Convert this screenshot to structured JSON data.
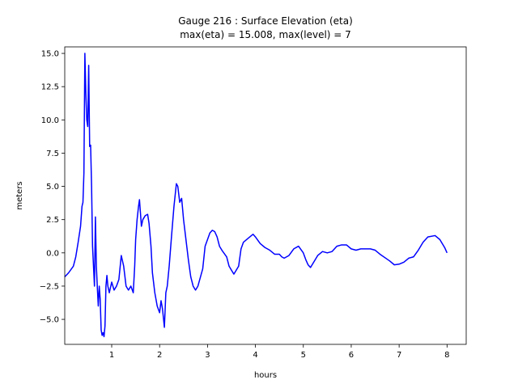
{
  "chart_data": {
    "type": "line",
    "title": "Gauge 216 : Surface Elevation (eta)",
    "subtitle": "max(eta) =  15.008,    max(level) = 7",
    "xlabel": "hours",
    "ylabel": "meters",
    "xlim": [
      0.02,
      8.4
    ],
    "ylim": [
      -6.88,
      15.49
    ],
    "xticks": [
      1,
      2,
      3,
      4,
      5,
      6,
      7,
      8
    ],
    "yticks": [
      {
        "value": -5,
        "label": "−5.0"
      },
      {
        "value": -2.5,
        "label": "−2.5"
      },
      {
        "value": 0,
        "label": "0.0"
      },
      {
        "value": 2.5,
        "label": "2.5"
      },
      {
        "value": 5,
        "label": "5.0"
      },
      {
        "value": 7.5,
        "label": "7.5"
      },
      {
        "value": 10,
        "label": "10.0"
      },
      {
        "value": 12.5,
        "label": "12.5"
      },
      {
        "value": 15,
        "label": "15.0"
      }
    ],
    "grid": false,
    "series": [
      {
        "color": "#0000ff",
        "x": [
          0.02,
          0.1,
          0.2,
          0.25,
          0.3,
          0.35,
          0.38,
          0.4,
          0.42,
          0.44,
          0.46,
          0.48,
          0.5,
          0.52,
          0.54,
          0.56,
          0.58,
          0.6,
          0.62,
          0.64,
          0.66,
          0.68,
          0.7,
          0.72,
          0.74,
          0.76,
          0.78,
          0.8,
          0.82,
          0.84,
          0.86,
          0.88,
          0.9,
          0.92,
          0.95,
          1.0,
          1.05,
          1.1,
          1.15,
          1.2,
          1.25,
          1.3,
          1.35,
          1.4,
          1.45,
          1.48,
          1.5,
          1.53,
          1.56,
          1.58,
          1.6,
          1.62,
          1.65,
          1.7,
          1.75,
          1.78,
          1.82,
          1.85,
          1.9,
          1.95,
          2.0,
          2.03,
          2.06,
          2.1,
          2.13,
          2.16,
          2.2,
          2.25,
          2.3,
          2.35,
          2.38,
          2.42,
          2.46,
          2.5,
          2.55,
          2.6,
          2.65,
          2.7,
          2.75,
          2.8,
          2.9,
          2.95,
          3.0,
          3.05,
          3.1,
          3.15,
          3.2,
          3.25,
          3.3,
          3.4,
          3.45,
          3.5,
          3.55,
          3.6,
          3.65,
          3.7,
          3.75,
          3.85,
          3.95,
          4.0,
          4.1,
          4.2,
          4.3,
          4.4,
          4.5,
          4.55,
          4.6,
          4.7,
          4.8,
          4.9,
          5.0,
          5.05,
          5.1,
          5.15,
          5.2,
          5.3,
          5.4,
          5.5,
          5.6,
          5.7,
          5.8,
          5.9,
          6.0,
          6.1,
          6.2,
          6.4,
          6.5,
          6.6,
          6.8,
          6.9,
          7.0,
          7.1,
          7.2,
          7.3,
          7.4,
          7.5,
          7.6,
          7.75,
          7.85,
          7.95,
          8.0
        ],
        "values": [
          -1.8,
          -1.5,
          -1.0,
          -0.3,
          0.8,
          2.0,
          3.5,
          3.8,
          6,
          15.0,
          12,
          10,
          9.5,
          14.1,
          8,
          8.1,
          5,
          0.5,
          -1,
          -2.5,
          2.7,
          -1,
          -2.6,
          -4,
          -2.5,
          -3.5,
          -5.8,
          -6.2,
          -6.0,
          -6.3,
          -5.5,
          -2.5,
          -1.7,
          -2.5,
          -3.0,
          -2.2,
          -2.8,
          -2.5,
          -2.0,
          -0.2,
          -1.0,
          -2.5,
          -2.8,
          -2.5,
          -3.0,
          -1.0,
          1.0,
          2.5,
          3.5,
          4.0,
          3.0,
          2.0,
          2.5,
          2.8,
          2.9,
          2.2,
          0.5,
          -1.5,
          -3.0,
          -4.0,
          -4.5,
          -3.6,
          -4.2,
          -5.6,
          -3.0,
          -2.5,
          -1.0,
          1.3,
          3.5,
          5.2,
          5.0,
          3.8,
          4.1,
          2.5,
          1.0,
          -0.5,
          -1.8,
          -2.5,
          -2.8,
          -2.5,
          -1.2,
          0.5,
          1.0,
          1.5,
          1.7,
          1.6,
          1.2,
          0.5,
          0.2,
          -0.3,
          -1.0,
          -1.3,
          -1.6,
          -1.3,
          -1.0,
          0.3,
          0.8,
          1.1,
          1.4,
          1.2,
          0.7,
          0.4,
          0.2,
          -0.1,
          -0.1,
          -0.3,
          -0.4,
          -0.2,
          0.3,
          0.5,
          0.0,
          -0.5,
          -0.9,
          -1.1,
          -0.8,
          -0.2,
          0.1,
          0.0,
          0.1,
          0.5,
          0.6,
          0.6,
          0.3,
          0.2,
          0.3,
          0.3,
          0.2,
          -0.1,
          -0.6,
          -0.9,
          -0.85,
          -0.7,
          -0.4,
          -0.3,
          0.2,
          0.8,
          1.2,
          1.3,
          1.0,
          0.4,
          0.0
        ]
      }
    ]
  }
}
